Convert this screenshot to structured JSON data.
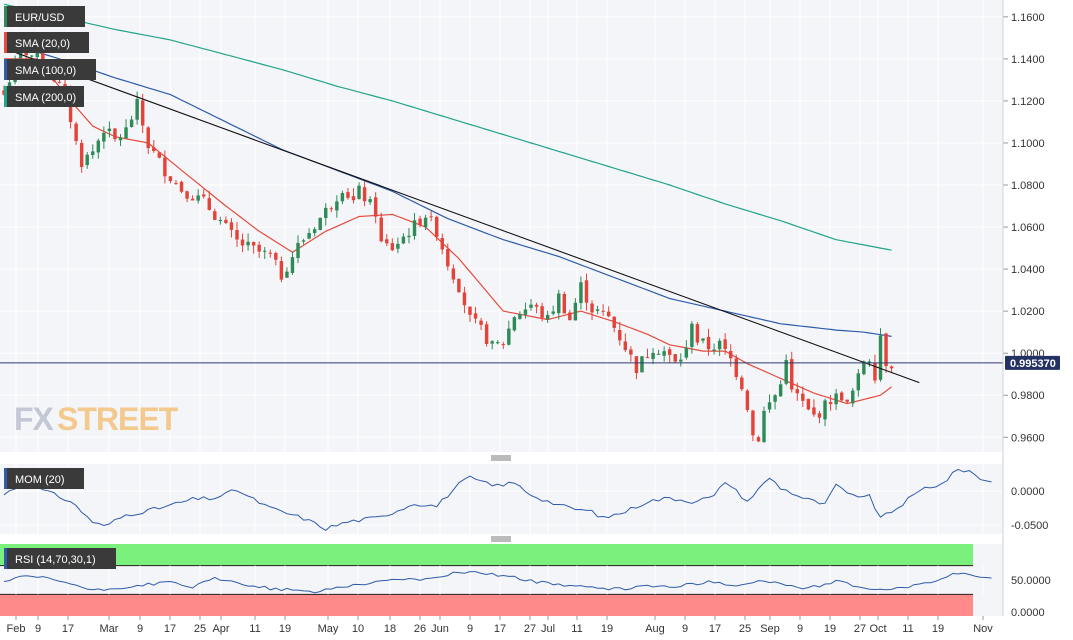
{
  "chart_data": [
    {
      "type": "candlestick",
      "title": "EUR/USD",
      "legend": [
        "SMA (20,0)",
        "SMA (100,0)",
        "SMA (200,0)"
      ],
      "y_ticks": [
        "1.1600",
        "1.1400",
        "1.1200",
        "1.1000",
        "1.0800",
        "1.0600",
        "1.0400",
        "1.0200",
        "1.0000",
        "0.9800",
        "0.9600"
      ],
      "ylim": [
        0.953,
        1.168
      ],
      "x_ticks": [
        "Feb",
        "9",
        "17",
        "Mar",
        "9",
        "17",
        "25",
        "Apr",
        "11",
        "19",
        "May",
        "10",
        "18",
        "26",
        "Jun",
        "9",
        "17",
        "27",
        "Jul",
        "11",
        "19",
        "Aug",
        "9",
        "17",
        "25",
        "Sep",
        "9",
        "19",
        "27",
        "Oct",
        "11",
        "19",
        "Nov"
      ],
      "last_price": "0.995370",
      "close_anchors": [
        [
          0,
          1.123
        ],
        [
          3,
          1.145
        ],
        [
          6,
          1.14
        ],
        [
          9,
          1.131
        ],
        [
          11,
          1.123
        ],
        [
          13,
          1.1
        ],
        [
          14,
          1.091
        ],
        [
          16,
          1.096
        ],
        [
          18,
          1.107
        ],
        [
          20,
          1.101
        ],
        [
          22,
          1.106
        ],
        [
          24,
          1.118
        ],
        [
          26,
          1.099
        ],
        [
          29,
          1.087
        ],
        [
          32,
          1.078
        ],
        [
          36,
          1.072
        ],
        [
          38,
          1.066
        ],
        [
          42,
          1.053
        ],
        [
          46,
          1.048
        ],
        [
          48,
          1.046
        ],
        [
          50,
          1.037
        ],
        [
          53,
          1.051
        ],
        [
          56,
          1.061
        ],
        [
          59,
          1.071
        ],
        [
          61,
          1.079
        ],
        [
          63,
          1.072
        ],
        [
          64,
          1.077
        ],
        [
          65,
          1.074
        ],
        [
          67,
          1.067
        ],
        [
          68,
          1.052
        ],
        [
          70,
          1.05
        ],
        [
          73,
          1.058
        ],
        [
          76,
          1.066
        ],
        [
          78,
          1.058
        ],
        [
          80,
          1.043
        ],
        [
          82,
          1.032
        ],
        [
          84,
          1.016
        ],
        [
          86,
          1.011
        ],
        [
          88,
          1.003
        ],
        [
          90,
          1.005
        ],
        [
          92,
          1.018
        ],
        [
          95,
          1.023
        ],
        [
          98,
          1.016
        ],
        [
          100,
          1.027
        ],
        [
          102,
          1.016
        ],
        [
          104,
          1.032
        ],
        [
          106,
          1.021
        ],
        [
          109,
          1.017
        ],
        [
          112,
          1.003
        ],
        [
          114,
          0.993
        ],
        [
          117,
          1.003
        ],
        [
          119,
          1.001
        ],
        [
          121,
          0.995
        ],
        [
          123,
          1.001
        ],
        [
          124,
          1.016
        ],
        [
          125,
          1.006
        ],
        [
          127,
          1.003
        ],
        [
          129,
          1.004
        ],
        [
          131,
          0.997
        ],
        [
          133,
          0.985
        ],
        [
          134,
          0.975
        ],
        [
          135,
          0.961
        ],
        [
          136,
          0.96
        ],
        [
          137,
          0.972
        ],
        [
          139,
          0.98
        ],
        [
          140,
          0.985
        ],
        [
          141,
          0.999
        ],
        [
          142,
          0.981
        ],
        [
          143,
          0.98
        ],
        [
          145,
          0.972
        ],
        [
          146,
          0.97
        ],
        [
          147,
          0.972
        ],
        [
          149,
          0.978
        ],
        [
          151,
          0.98
        ],
        [
          152,
          0.975
        ],
        [
          154,
          0.988
        ],
        [
          155,
          0.997
        ],
        [
          156,
          0.998
        ],
        [
          157,
          0.99
        ],
        [
          158,
          1.009
        ],
        [
          159,
          0.996
        ],
        [
          160,
          0.9954
        ]
      ],
      "sma20_anchors": [
        [
          0,
          1.14
        ],
        [
          6,
          1.14
        ],
        [
          12,
          1.12
        ],
        [
          16,
          1.108
        ],
        [
          20,
          1.103
        ],
        [
          26,
          1.1
        ],
        [
          32,
          1.087
        ],
        [
          40,
          1.07
        ],
        [
          46,
          1.058
        ],
        [
          52,
          1.048
        ],
        [
          58,
          1.058
        ],
        [
          64,
          1.065
        ],
        [
          70,
          1.066
        ],
        [
          76,
          1.06
        ],
        [
          82,
          1.045
        ],
        [
          90,
          1.02
        ],
        [
          98,
          1.016
        ],
        [
          104,
          1.02
        ],
        [
          110,
          1.015
        ],
        [
          116,
          1.009
        ],
        [
          120,
          1.004
        ],
        [
          126,
          1.001
        ],
        [
          130,
          1.001
        ],
        [
          134,
          0.995
        ],
        [
          140,
          0.988
        ],
        [
          146,
          0.981
        ],
        [
          152,
          0.976
        ],
        [
          158,
          0.98
        ],
        [
          160,
          0.984
        ]
      ],
      "sma100_anchors": [
        [
          0,
          1.148
        ],
        [
          10,
          1.14
        ],
        [
          20,
          1.131
        ],
        [
          30,
          1.123
        ],
        [
          40,
          1.11
        ],
        [
          50,
          1.097
        ],
        [
          60,
          1.087
        ],
        [
          70,
          1.077
        ],
        [
          80,
          1.064
        ],
        [
          90,
          1.054
        ],
        [
          100,
          1.046
        ],
        [
          110,
          1.036
        ],
        [
          120,
          1.026
        ],
        [
          130,
          1.02
        ],
        [
          140,
          1.014
        ],
        [
          150,
          1.011
        ],
        [
          155,
          1.01
        ],
        [
          160,
          1.008
        ]
      ],
      "sma200_anchors": [
        [
          0,
          1.166
        ],
        [
          10,
          1.16
        ],
        [
          20,
          1.154
        ],
        [
          30,
          1.149
        ],
        [
          40,
          1.142
        ],
        [
          50,
          1.135
        ],
        [
          60,
          1.127
        ],
        [
          70,
          1.12
        ],
        [
          80,
          1.112
        ],
        [
          90,
          1.104
        ],
        [
          100,
          1.096
        ],
        [
          110,
          1.088
        ],
        [
          120,
          1.08
        ],
        [
          130,
          1.071
        ],
        [
          140,
          1.063
        ],
        [
          150,
          1.054
        ],
        [
          160,
          1.049
        ]
      ],
      "trendline": {
        "from": [
          0,
          1.145
        ],
        "to": [
          165,
          0.986
        ]
      },
      "colors": {
        "bull": "#2e8b57",
        "bear": "#e2443a",
        "sma20": "#e54a3c",
        "sma100": "#2f5bab",
        "sma200": "#21a58a",
        "trendline": "#111111",
        "hline": "#2e3b70",
        "tag": "#243263"
      }
    },
    {
      "type": "line",
      "title": "MOM (20)",
      "y_ticks": [
        "0.0000",
        "-0.0500"
      ],
      "ylim": [
        -0.063,
        0.04
      ],
      "color": "#2f5bab",
      "anchors": [
        [
          0,
          -0.005
        ],
        [
          3,
          0.01
        ],
        [
          6,
          0.005
        ],
        [
          9,
          -0.005
        ],
        [
          12,
          -0.015
        ],
        [
          16,
          -0.045
        ],
        [
          18,
          -0.052
        ],
        [
          22,
          -0.035
        ],
        [
          28,
          -0.025
        ],
        [
          34,
          -0.012
        ],
        [
          38,
          -0.01
        ],
        [
          42,
          0.002
        ],
        [
          44,
          -0.008
        ],
        [
          48,
          -0.025
        ],
        [
          54,
          -0.04
        ],
        [
          58,
          -0.055
        ],
        [
          62,
          -0.045
        ],
        [
          68,
          -0.038
        ],
        [
          74,
          -0.018
        ],
        [
          78,
          -0.022
        ],
        [
          82,
          0.01
        ],
        [
          84,
          0.02
        ],
        [
          88,
          0.008
        ],
        [
          92,
          0.012
        ],
        [
          95,
          -0.005
        ],
        [
          98,
          -0.015
        ],
        [
          102,
          -0.025
        ],
        [
          106,
          -0.03
        ],
        [
          108,
          -0.04
        ],
        [
          112,
          -0.03
        ],
        [
          116,
          -0.015
        ],
        [
          120,
          -0.01
        ],
        [
          124,
          -0.015
        ],
        [
          128,
          -0.008
        ],
        [
          130,
          0.015
        ],
        [
          134,
          -0.015
        ],
        [
          138,
          0.02
        ],
        [
          140,
          0.005
        ],
        [
          144,
          -0.01
        ],
        [
          148,
          -0.02
        ],
        [
          150,
          0.01
        ],
        [
          152,
          -0.005
        ],
        [
          156,
          -0.008
        ],
        [
          158,
          -0.04
        ],
        [
          161,
          -0.025
        ],
        [
          163,
          -0.012
        ],
        [
          166,
          0.005
        ],
        [
          169,
          0.01
        ],
        [
          172,
          0.032
        ],
        [
          174,
          0.03
        ],
        [
          176,
          0.018
        ],
        [
          178,
          0.015
        ]
      ]
    },
    {
      "type": "line",
      "title": "RSI (14,70,30,1)",
      "y_ticks": [
        "50.0000",
        "0.0000"
      ],
      "ylim": [
        0,
        100
      ],
      "overbought": 70,
      "oversold": 30,
      "color": "#2f5bab",
      "anchors": [
        [
          0,
          48
        ],
        [
          4,
          55
        ],
        [
          8,
          52
        ],
        [
          12,
          45
        ],
        [
          16,
          35
        ],
        [
          20,
          38
        ],
        [
          26,
          44
        ],
        [
          30,
          47
        ],
        [
          34,
          40
        ],
        [
          38,
          52
        ],
        [
          42,
          46
        ],
        [
          48,
          38
        ],
        [
          52,
          36
        ],
        [
          56,
          33
        ],
        [
          60,
          40
        ],
        [
          66,
          46
        ],
        [
          72,
          52
        ],
        [
          76,
          50
        ],
        [
          80,
          58
        ],
        [
          84,
          62
        ],
        [
          88,
          58
        ],
        [
          92,
          54
        ],
        [
          96,
          47
        ],
        [
          100,
          44
        ],
        [
          104,
          41
        ],
        [
          108,
          37
        ],
        [
          112,
          38
        ],
        [
          116,
          42
        ],
        [
          120,
          40
        ],
        [
          124,
          44
        ],
        [
          128,
          48
        ],
        [
          132,
          42
        ],
        [
          136,
          49
        ],
        [
          140,
          45
        ],
        [
          144,
          38
        ],
        [
          148,
          43
        ],
        [
          150,
          48
        ],
        [
          154,
          41
        ],
        [
          158,
          36
        ],
        [
          160,
          37
        ],
        [
          164,
          42
        ],
        [
          168,
          49
        ],
        [
          172,
          60
        ],
        [
          176,
          52
        ],
        [
          178,
          54
        ]
      ],
      "colors": {
        "ob_zone": "#7cf07c",
        "os_zone": "#ff8a8a"
      }
    }
  ],
  "watermark": {
    "fx": "FX",
    "street": "STREET"
  }
}
